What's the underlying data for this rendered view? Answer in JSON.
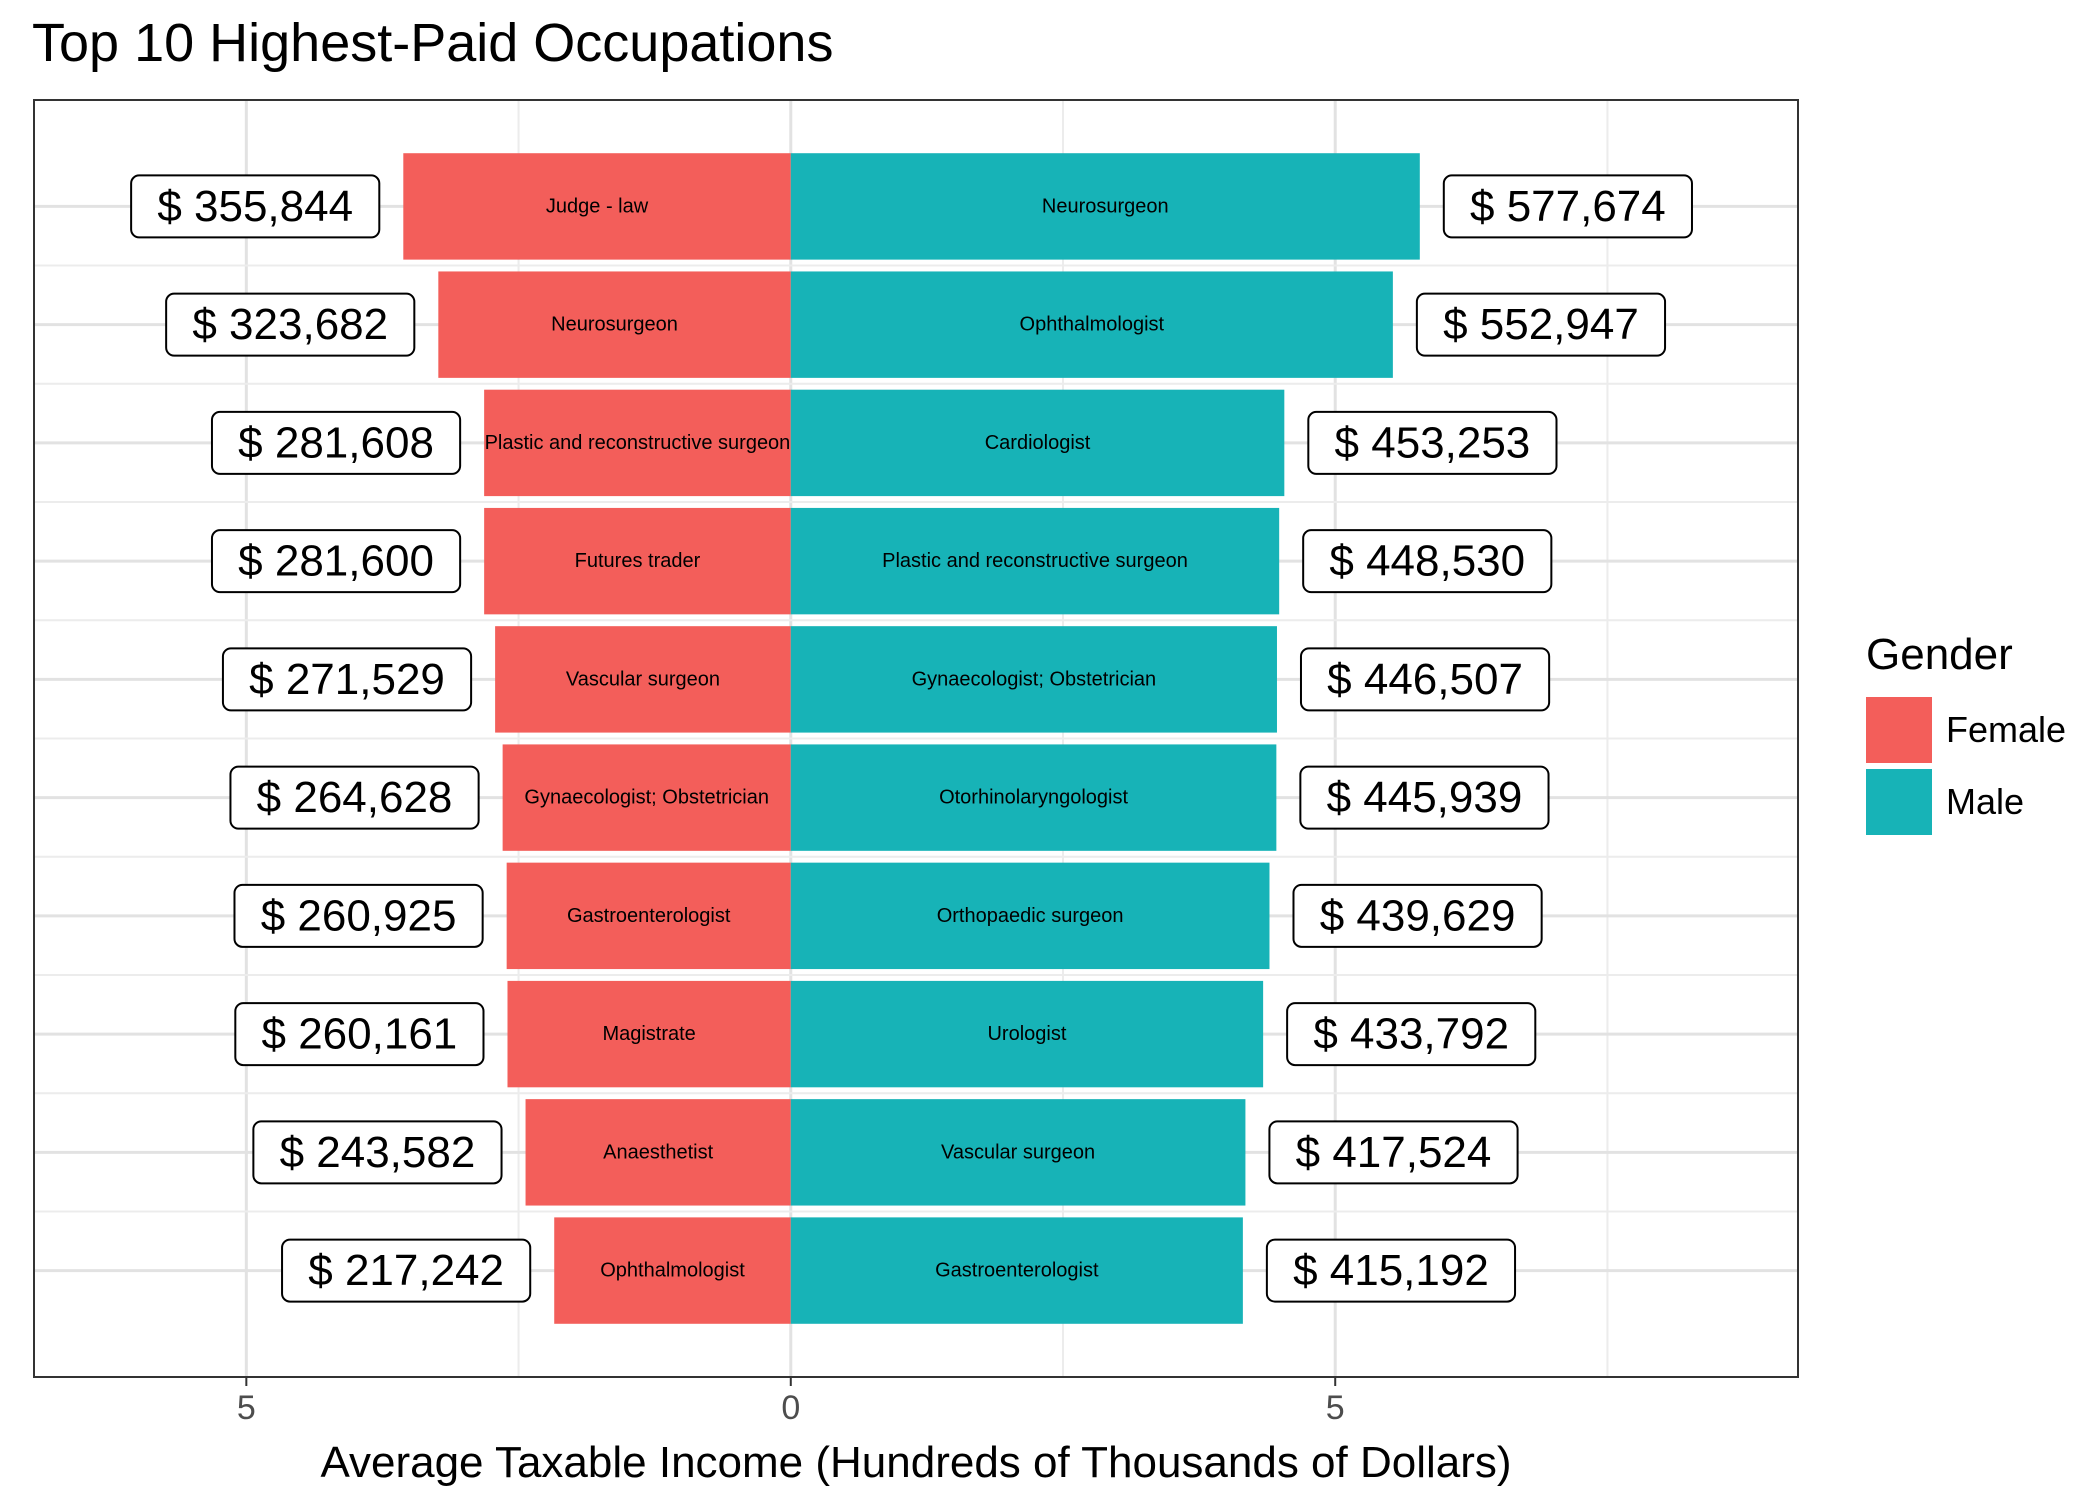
{
  "chart_data": {
    "type": "bar",
    "title": "Top 10 Highest-Paid Occupations",
    "xlabel": "Average Taxable Income (Hundreds of Thousands of Dollars)",
    "ylabel": "",
    "xlim": [
      -6.95,
      9.25
    ],
    "xticks": [
      -5,
      0,
      5
    ],
    "xtick_labels": [
      "5",
      "0",
      "5"
    ],
    "grid": true,
    "legend": {
      "title": "Gender",
      "position": "right"
    },
    "series": [
      {
        "name": "Female",
        "color": "#F35E5A",
        "labels": [
          "Judge - law",
          "Neurosurgeon",
          "Plastic and reconstructive surgeon",
          "Futures trader",
          "Vascular surgeon",
          "Gynaecologist; Obstetrician",
          "Gastroenterologist",
          "Magistrate",
          "Anaesthetist",
          "Ophthalmologist"
        ],
        "values": [
          355844,
          323682,
          281608,
          281600,
          271529,
          264628,
          260925,
          260161,
          243582,
          217242
        ],
        "value_labels": [
          "$ 355,844",
          "$ 323,682",
          "$ 281,608",
          "$ 281,600",
          "$ 271,529",
          "$ 264,628",
          "$ 260,925",
          "$ 260,161",
          "$ 243,582",
          "$ 217,242"
        ]
      },
      {
        "name": "Male",
        "color": "#17B3B7",
        "labels": [
          "Neurosurgeon",
          "Ophthalmologist",
          "Cardiologist",
          "Plastic and reconstructive surgeon",
          "Gynaecologist; Obstetrician",
          "Otorhinolaryngologist",
          "Orthopaedic surgeon",
          "Urologist",
          "Vascular surgeon",
          "Gastroenterologist"
        ],
        "values": [
          577674,
          552947,
          453253,
          448530,
          446507,
          445939,
          439629,
          433792,
          417524,
          415192
        ],
        "value_labels": [
          "$ 577,674",
          "$ 552,947",
          "$ 453,253",
          "$ 448,530",
          "$ 446,507",
          "$ 445,939",
          "$ 439,629",
          "$ 433,792",
          "$ 417,524",
          "$ 415,192"
        ]
      }
    ]
  }
}
